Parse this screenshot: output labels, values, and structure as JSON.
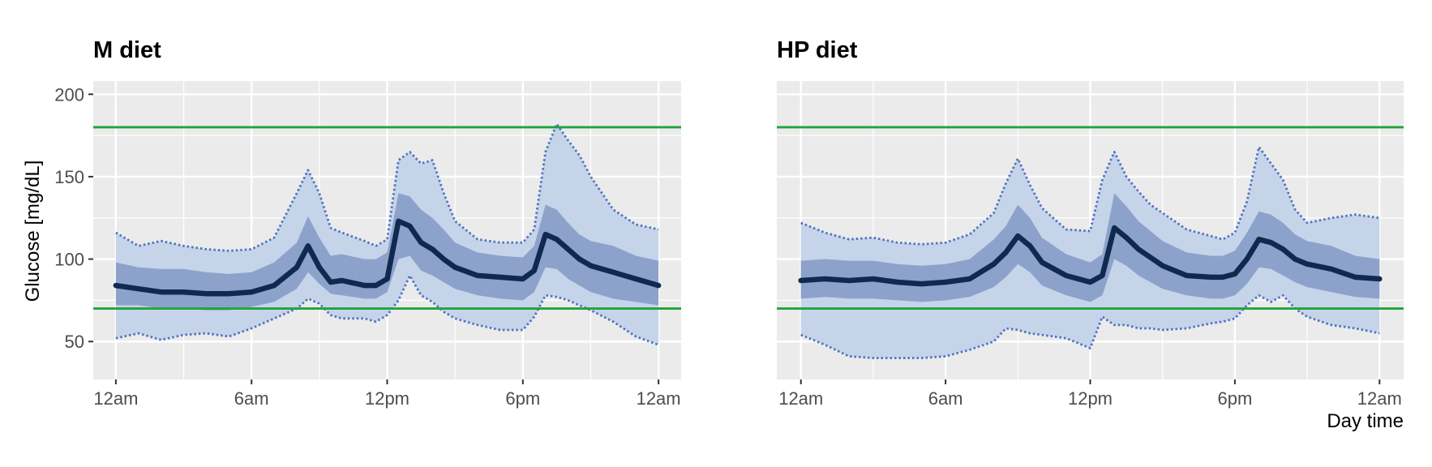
{
  "chart_data": {
    "type": "area",
    "ylabel": "Glucose [mg/dL]",
    "xlabel": "Day time",
    "x_ticks": [
      "12am",
      "6am",
      "12pm",
      "6pm",
      "12am"
    ],
    "x_tick_hours": [
      0,
      6,
      12,
      18,
      24
    ],
    "y_ticks": [
      50,
      100,
      150,
      200
    ],
    "ylim": [
      27,
      208
    ],
    "xlim": [
      -1,
      25
    ],
    "reference_lines": [
      70,
      180
    ],
    "grid": true,
    "colors": {
      "panel_bg": "#ebebeb",
      "grid": "#ffffff",
      "outer_band": "#c6d4ea",
      "inner_band": "#8da2cb",
      "median": "#0f2a4e",
      "bound_line": "#4f73c0",
      "reference": "#21a33a",
      "tick_text": "#4d4d4d"
    },
    "panels": [
      {
        "title": "M diet",
        "x": [
          0,
          1,
          2,
          3,
          4,
          5,
          6,
          7,
          8,
          8.5,
          9,
          9.5,
          10,
          11,
          11.5,
          12,
          12.5,
          13,
          13.5,
          14,
          14.5,
          15,
          16,
          17,
          18,
          18.5,
          19,
          19.5,
          20,
          20.5,
          21,
          22,
          23,
          24
        ],
        "median": [
          84,
          82,
          80,
          80,
          79,
          79,
          80,
          84,
          95,
          108,
          95,
          86,
          87,
          84,
          84,
          88,
          123,
          120,
          110,
          106,
          100,
          95,
          90,
          89,
          88,
          93,
          115,
          112,
          106,
          100,
          96,
          92,
          88,
          84
        ],
        "inner_lower": [
          72,
          72,
          70,
          70,
          69,
          69,
          71,
          74,
          82,
          92,
          85,
          79,
          78,
          76,
          76,
          80,
          100,
          102,
          93,
          90,
          86,
          82,
          78,
          76,
          75,
          80,
          95,
          94,
          88,
          84,
          80,
          76,
          74,
          72
        ],
        "inner_upper": [
          98,
          95,
          94,
          94,
          92,
          91,
          92,
          98,
          110,
          126,
          113,
          102,
          103,
          100,
          100,
          104,
          140,
          138,
          130,
          125,
          118,
          110,
          104,
          102,
          101,
          108,
          133,
          130,
          122,
          115,
          111,
          108,
          102,
          99
        ],
        "outer_lower": [
          52,
          55,
          51,
          54,
          55,
          53,
          58,
          64,
          70,
          76,
          73,
          66,
          64,
          64,
          62,
          66,
          75,
          90,
          78,
          74,
          68,
          64,
          60,
          57,
          57,
          65,
          78,
          77,
          75,
          72,
          69,
          62,
          53,
          48
        ],
        "outer_upper": [
          116,
          108,
          111,
          108,
          106,
          105,
          106,
          113,
          140,
          154,
          140,
          119,
          116,
          111,
          108,
          112,
          160,
          165,
          158,
          160,
          140,
          123,
          112,
          110,
          110,
          118,
          165,
          182,
          172,
          163,
          150,
          130,
          121,
          118
        ]
      },
      {
        "title": "HP diet",
        "x": [
          0,
          1,
          2,
          3,
          4,
          5,
          6,
          7,
          8,
          8.5,
          9,
          9.5,
          10,
          11,
          12,
          12.5,
          13,
          13.5,
          14,
          14.5,
          15,
          16,
          17,
          17.5,
          18,
          18.5,
          19,
          19.5,
          20,
          20.5,
          21,
          22,
          23,
          24
        ],
        "median": [
          87,
          88,
          87,
          88,
          86,
          85,
          86,
          88,
          97,
          104,
          114,
          108,
          98,
          90,
          86,
          90,
          119,
          113,
          106,
          101,
          96,
          90,
          89,
          89,
          91,
          100,
          112,
          110,
          106,
          100,
          97,
          94,
          89,
          88
        ],
        "inner_lower": [
          76,
          77,
          76,
          76,
          75,
          74,
          75,
          77,
          83,
          89,
          97,
          92,
          84,
          78,
          74,
          78,
          100,
          96,
          90,
          86,
          82,
          78,
          76,
          76,
          78,
          85,
          95,
          94,
          90,
          86,
          83,
          80,
          77,
          76
        ],
        "inner_upper": [
          99,
          100,
          99,
          99,
          97,
          96,
          97,
          100,
          112,
          120,
          133,
          125,
          113,
          103,
          98,
          103,
          140,
          132,
          123,
          117,
          111,
          104,
          102,
          102,
          105,
          116,
          129,
          127,
          122,
          115,
          111,
          108,
          102,
          100
        ],
        "outer_lower": [
          54,
          48,
          41,
          40,
          40,
          40,
          41,
          45,
          50,
          58,
          57,
          55,
          54,
          52,
          46,
          65,
          60,
          60,
          58,
          58,
          57,
          58,
          61,
          62,
          64,
          72,
          78,
          74,
          78,
          70,
          65,
          60,
          58,
          55
        ],
        "outer_upper": [
          122,
          116,
          112,
          113,
          110,
          109,
          110,
          115,
          128,
          146,
          161,
          145,
          131,
          118,
          117,
          148,
          165,
          150,
          141,
          133,
          128,
          118,
          114,
          112,
          116,
          135,
          168,
          158,
          148,
          130,
          122,
          125,
          127,
          125
        ]
      }
    ]
  }
}
